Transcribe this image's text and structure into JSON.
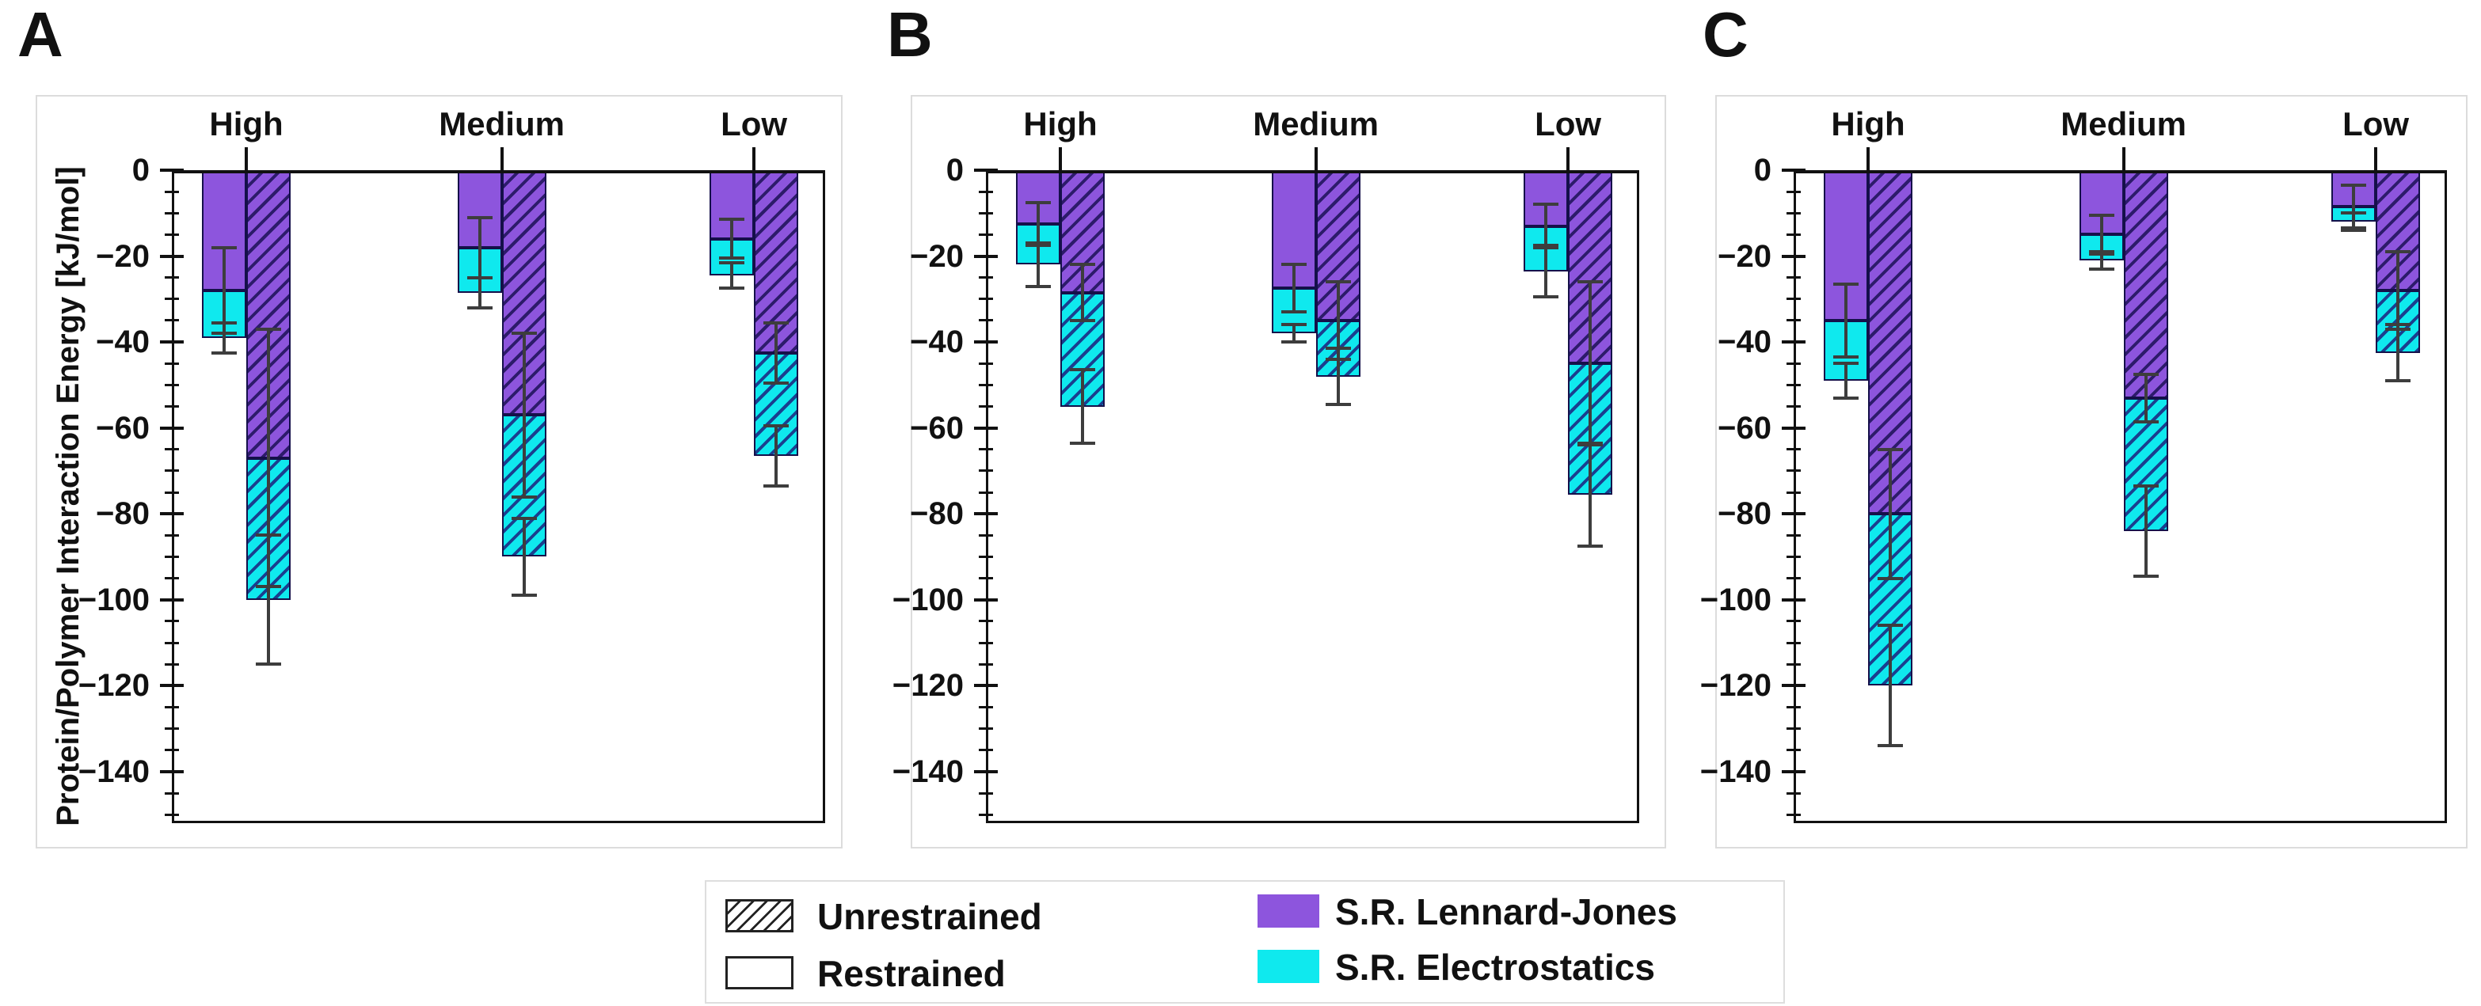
{
  "figure": {
    "panel_letters": [
      "A",
      "B",
      "C"
    ],
    "y_axis_title": "Protein/Polymer Interaction Energy [kJ/mol]"
  },
  "legend": {
    "pattern_items": [
      {
        "label": "Unrestrained",
        "swatch": "hatched"
      },
      {
        "label": "Restrained",
        "swatch": "plain"
      }
    ],
    "color_items": [
      {
        "label": "S.R. Lennard-Jones",
        "color": "#8d55dd"
      },
      {
        "label": "S.R. Electrostatics",
        "color": "#0fe9ee"
      }
    ]
  },
  "colors": {
    "lennard_jones": "#8d55dd",
    "electrostatics": "#0fe9ee",
    "purple_hatch": "#2d1b6b",
    "cyan_hatch": "#1a3f8f",
    "bar_border": "#15104a",
    "axis": "#111111",
    "error_bar": "#3d3d3d",
    "faint_border": "#dcdcdc"
  },
  "chart_data": {
    "type": "bar",
    "stacked": true,
    "orientation": "vertical-negative",
    "grid": false,
    "legend_position": "bottom",
    "units": "kJ/mol",
    "ylabel": "Protein/Polymer Interaction Energy [kJ/mol]",
    "ylim": [
      -152,
      0
    ],
    "ytick_major_step": 20,
    "ytick_minor_step": 5,
    "ytick_labels": [
      "0",
      "−20",
      "−40",
      "−60",
      "−80",
      "−100",
      "−120",
      "−140"
    ],
    "categories": [
      "High",
      "Medium",
      "Low"
    ],
    "series_names": [
      "S.R. Lennard-Jones",
      "S.R. Electrostatics"
    ],
    "bar_styles": [
      "Restrained",
      "Unrestrained"
    ],
    "panels": [
      {
        "label": "A",
        "groups": [
          {
            "category": "High",
            "restrained": {
              "lennard_jones": -28,
              "electrostatics": -11,
              "total": -39,
              "lj_err": 10,
              "total_err": 3.5
            },
            "unrestrained": {
              "lennard_jones": -67,
              "electrostatics": -33,
              "total": -100,
              "lj_err": 30,
              "total_err": 15
            }
          },
          {
            "category": "Medium",
            "restrained": {
              "lennard_jones": -18,
              "electrostatics": -10.5,
              "total": -28.5,
              "lj_err": 7,
              "total_err": 3.5
            },
            "unrestrained": {
              "lennard_jones": -57,
              "electrostatics": -33,
              "total": -90,
              "lj_err": 19,
              "total_err": 9
            }
          },
          {
            "category": "Low",
            "restrained": {
              "lennard_jones": -16,
              "electrostatics": -8.5,
              "total": -24.5,
              "lj_err": 4.5,
              "total_err": 3
            },
            "unrestrained": {
              "lennard_jones": -42.5,
              "electrostatics": -24,
              "total": -66.5,
              "lj_err": 7,
              "total_err": 7
            }
          }
        ]
      },
      {
        "label": "B",
        "groups": [
          {
            "category": "High",
            "restrained": {
              "lennard_jones": -12.5,
              "electrostatics": -9.5,
              "total": -22,
              "lj_err": 5,
              "total_err": 5
            },
            "unrestrained": {
              "lennard_jones": -28.5,
              "electrostatics": -26.5,
              "total": -55,
              "lj_err": 6.5,
              "total_err": 8.5
            }
          },
          {
            "category": "Medium",
            "restrained": {
              "lennard_jones": -27.5,
              "electrostatics": -10.5,
              "total": -38,
              "lj_err": 5.5,
              "total_err": 2
            },
            "unrestrained": {
              "lennard_jones": -35,
              "electrostatics": -13,
              "total": -48,
              "lj_err": 9,
              "total_err": 6.5
            }
          },
          {
            "category": "Low",
            "restrained": {
              "lennard_jones": -13,
              "electrostatics": -10.5,
              "total": -23.5,
              "lj_err": 5,
              "total_err": 6
            },
            "unrestrained": {
              "lennard_jones": -45,
              "electrostatics": -30.5,
              "total": -75.5,
              "lj_err": 19,
              "total_err": 12
            }
          }
        ]
      },
      {
        "label": "C",
        "groups": [
          {
            "category": "High",
            "restrained": {
              "lennard_jones": -35,
              "electrostatics": -14,
              "total": -49,
              "lj_err": 8.5,
              "total_err": 4
            },
            "unrestrained": {
              "lennard_jones": -80,
              "electrostatics": -40,
              "total": -120,
              "lj_err": 15,
              "total_err": 14
            }
          },
          {
            "category": "Medium",
            "restrained": {
              "lennard_jones": -15,
              "electrostatics": -6,
              "total": -21,
              "lj_err": 4.5,
              "total_err": 2
            },
            "unrestrained": {
              "lennard_jones": -53,
              "electrostatics": -31,
              "total": -84,
              "lj_err": 5.5,
              "total_err": 10.5
            }
          },
          {
            "category": "Low",
            "restrained": {
              "lennard_jones": -8.5,
              "electrostatics": -3.5,
              "total": -12,
              "lj_err": 5,
              "total_err": 2
            },
            "unrestrained": {
              "lennard_jones": -28,
              "electrostatics": -14.5,
              "total": -42.5,
              "lj_err": 9,
              "total_err": 6.5
            }
          }
        ]
      }
    ]
  }
}
